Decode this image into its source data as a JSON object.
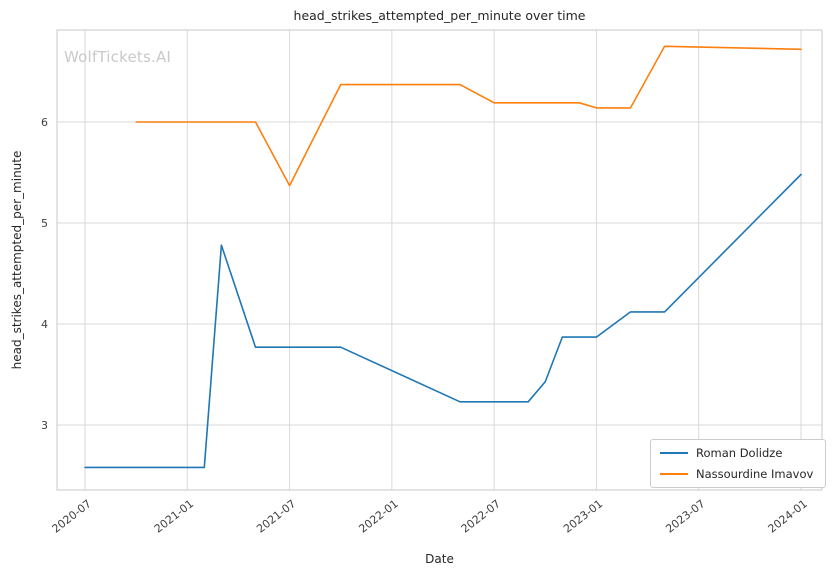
{
  "watermark": "WolfTickets.AI",
  "chart_data": {
    "type": "line",
    "title": "head_strikes_attempted_per_minute over time",
    "xlabel": "Date",
    "ylabel": "head_strikes_attempted_per_minute",
    "grid": true,
    "legend_position": "lower right",
    "x_tick_labels": [
      "2020-07",
      "2021-01",
      "2021-07",
      "2022-01",
      "2022-07",
      "2023-01",
      "2023-07",
      "2024-01"
    ],
    "y_ticks": [
      3,
      4,
      5,
      6
    ],
    "ylim": [
      2.36,
      6.91
    ],
    "series": [
      {
        "name": "Roman Dolidze",
        "color": "#1f77b4",
        "points": [
          [
            "2020-07",
            2.58
          ],
          [
            "2021-02",
            2.58
          ],
          [
            "2021-03",
            4.78
          ],
          [
            "2021-05",
            3.77
          ],
          [
            "2021-10",
            3.77
          ],
          [
            "2022-05",
            3.23
          ],
          [
            "2022-09",
            3.23
          ],
          [
            "2022-10",
            3.43
          ],
          [
            "2022-11",
            3.87
          ],
          [
            "2023-01",
            3.87
          ],
          [
            "2023-03",
            4.12
          ],
          [
            "2023-05",
            4.12
          ],
          [
            "2024-01",
            5.48
          ]
        ]
      },
      {
        "name": "Nassourdine Imavov",
        "color": "#ff7f0e",
        "points": [
          [
            "2020-10",
            6.0
          ],
          [
            "2021-05",
            6.0
          ],
          [
            "2021-07",
            5.37
          ],
          [
            "2021-10",
            6.37
          ],
          [
            "2022-05",
            6.37
          ],
          [
            "2022-07",
            6.19
          ],
          [
            "2022-12",
            6.19
          ],
          [
            "2023-01",
            6.14
          ],
          [
            "2023-03",
            6.14
          ],
          [
            "2023-05",
            6.75
          ],
          [
            "2024-01",
            6.72
          ]
        ]
      }
    ]
  }
}
